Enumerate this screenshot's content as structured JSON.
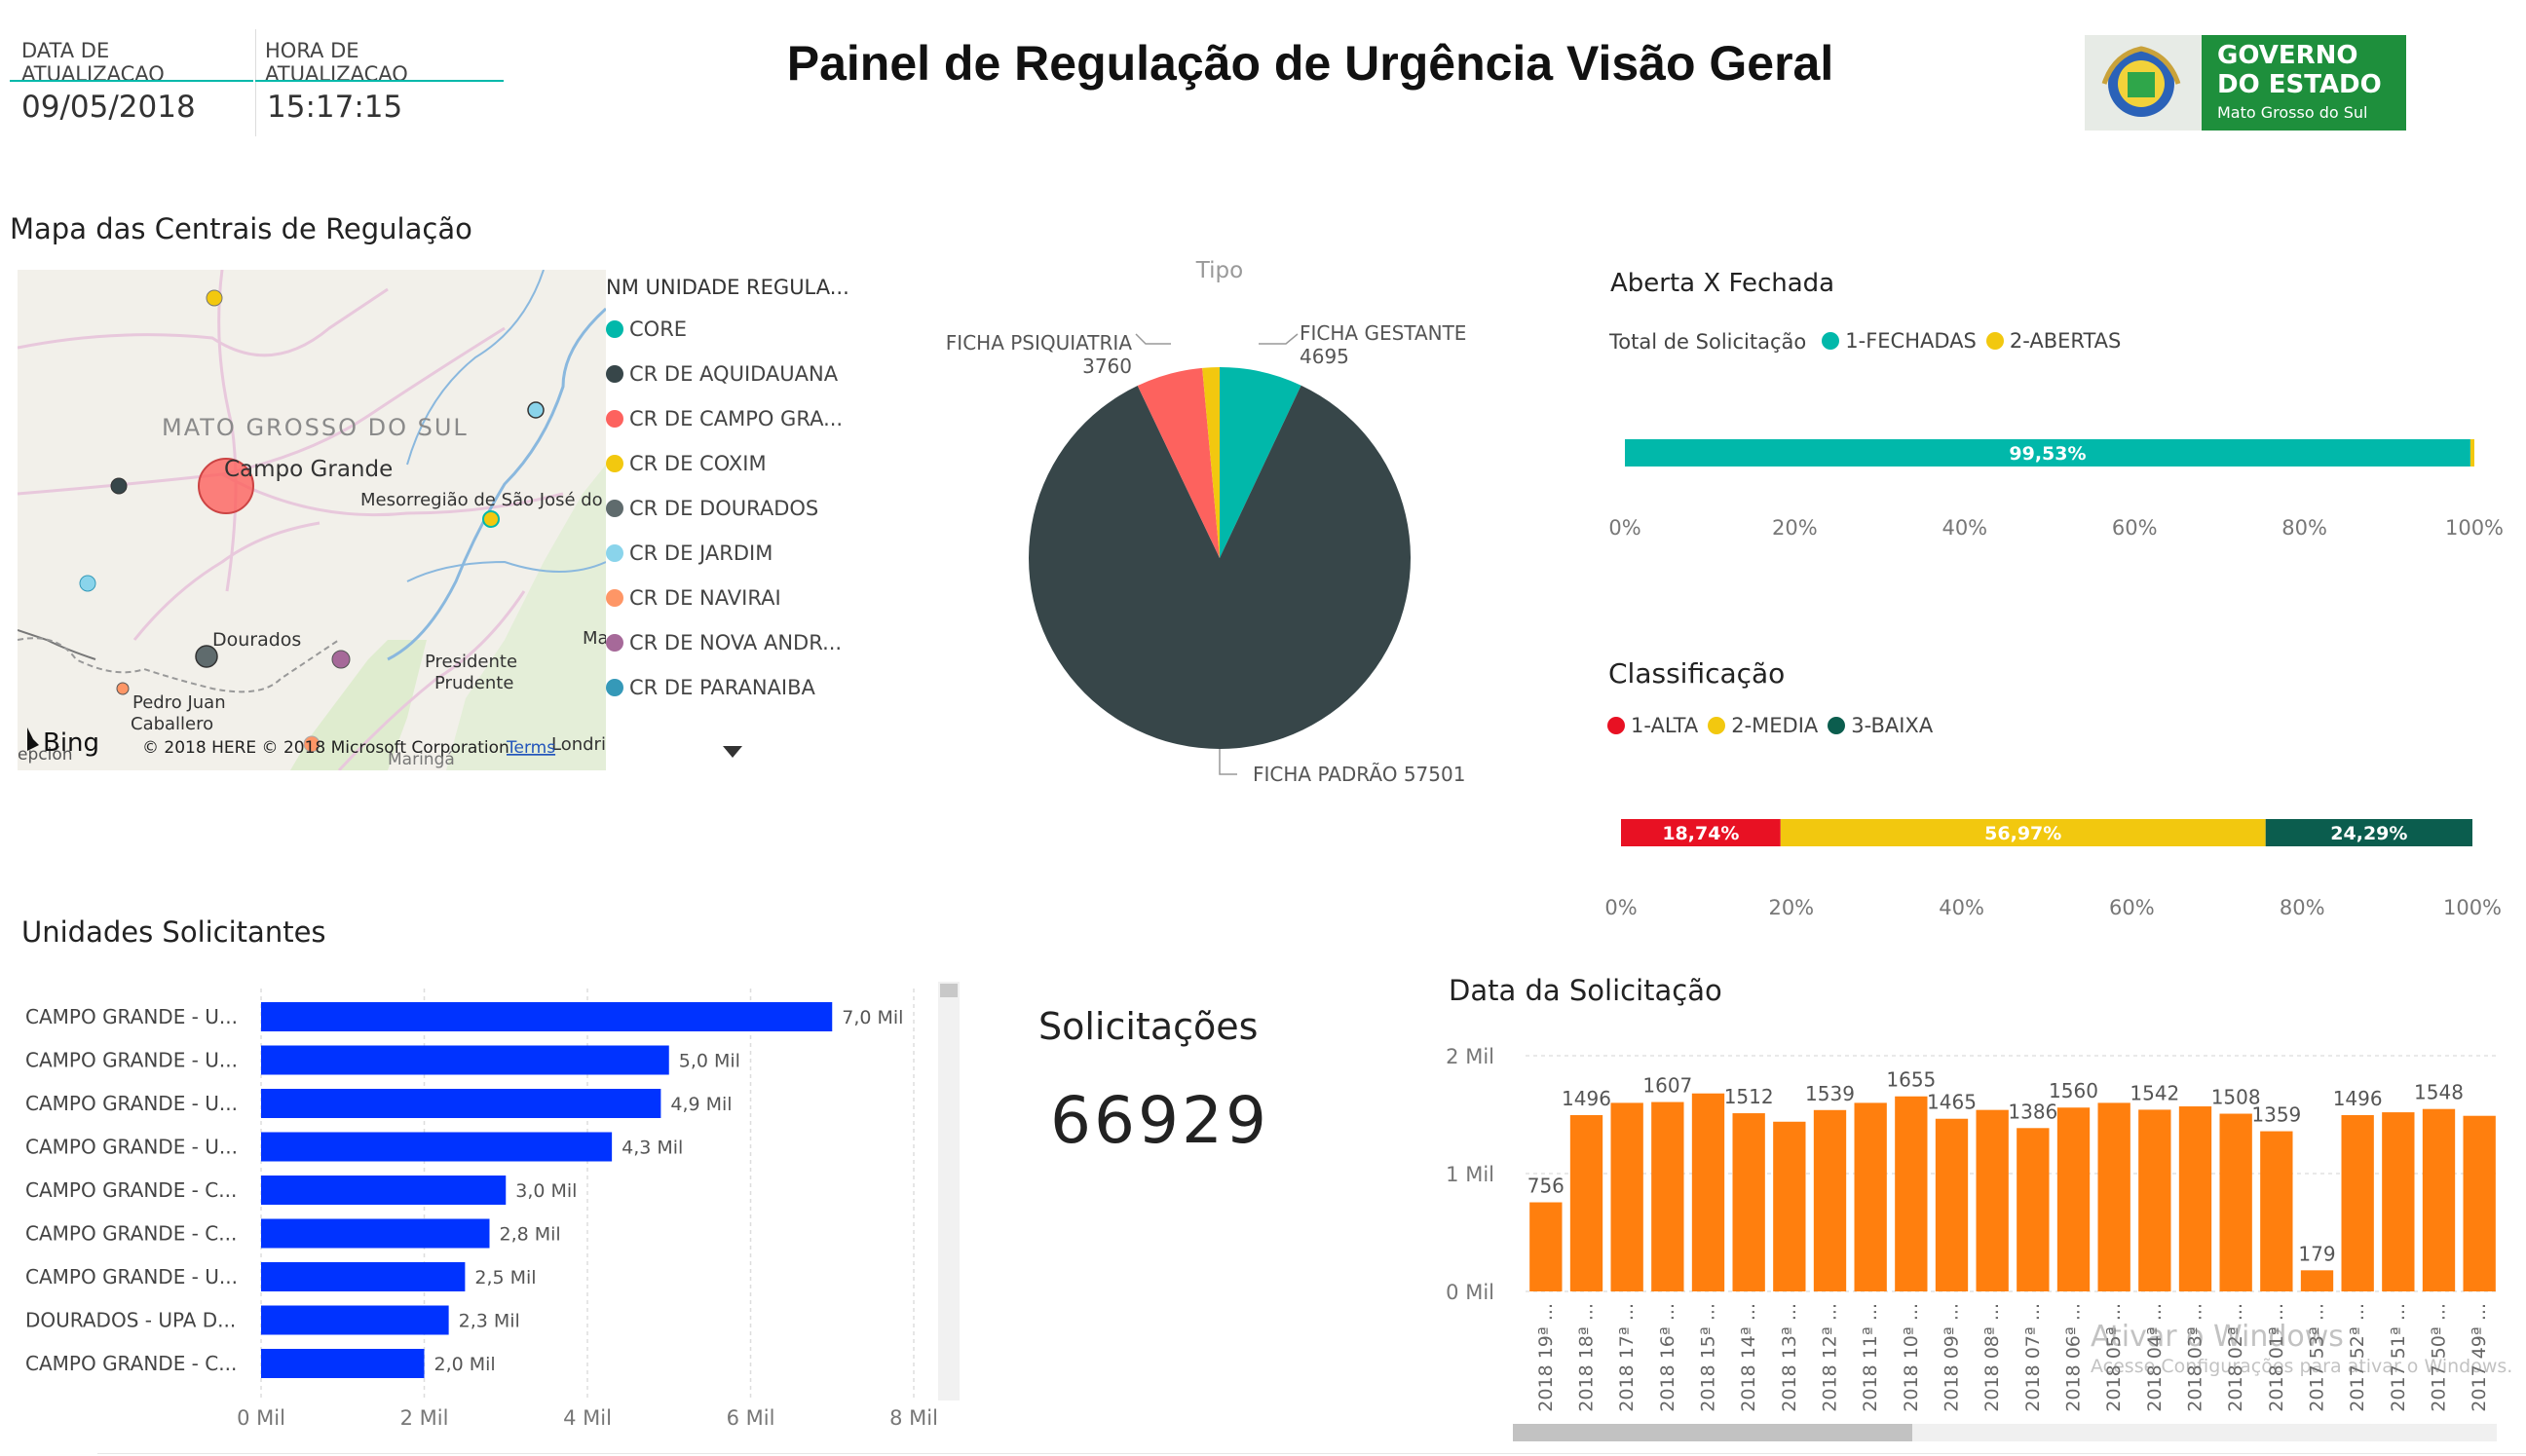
{
  "header": {
    "date_label": "DATA DE ATUALIZACAO",
    "time_label": "HORA DE ATUALIZACAO",
    "date_value": "09/05/2018",
    "time_value": "15:17:15",
    "title": "Painel de Regulação de Urgência Visão Geral",
    "logo_line1": "GOVERNO",
    "logo_line2": "DO ESTADO",
    "logo_line3": "Mato Grosso do Sul"
  },
  "map": {
    "title": "Mapa das Centrais de Regulação",
    "region_label": "MATO GROSSO DO SUL",
    "city_campo_grande": "Campo Grande",
    "city_dourados": "Dourados",
    "city_mesorregiao": "Mesorregião de São José do",
    "city_presidente": "Presidente",
    "city_prudente": "Prudente",
    "city_pedro": "Pedro Juan",
    "city_caballero": "Caballero",
    "city_maringa": "Maringá",
    "city_londrina": "Londrina",
    "city_ma": "Ma",
    "city_epcion": "epción",
    "bing": "Bing",
    "copyright": "© 2018 HERE © 2018 Microsoft Corporation",
    "terms": "Terms",
    "legend_title": "NM UNIDADE REGULA...",
    "legend": [
      {
        "label": "CORE",
        "color": "#01B8AA"
      },
      {
        "label": "CR DE AQUIDAUANA",
        "color": "#374649"
      },
      {
        "label": "CR DE CAMPO GRA...",
        "color": "#FD625E"
      },
      {
        "label": "CR DE COXIM",
        "color": "#F2C80F"
      },
      {
        "label": "CR DE DOURADOS",
        "color": "#5F6B6D"
      },
      {
        "label": "CR DE JARDIM",
        "color": "#8AD4EB"
      },
      {
        "label": "CR DE NAVIRAI",
        "color": "#FE9666"
      },
      {
        "label": "CR DE NOVA ANDR...",
        "color": "#A66999"
      },
      {
        "label": "CR DE PARANAIBA",
        "color": "#3599B8"
      }
    ]
  },
  "chart_data": [
    {
      "type": "pie",
      "title": "Tipo",
      "slices": [
        {
          "label": "FICHA GESTANTE",
          "value": 4695,
          "color": "#01B8AA"
        },
        {
          "label": "FICHA PADRÃO",
          "value": 57501,
          "color": "#374649"
        },
        {
          "label": "FICHA PSIQUIATRIA",
          "value": 3760,
          "color": "#FD625E"
        },
        {
          "label": "",
          "value": 973,
          "color": "#F2C80F"
        }
      ],
      "display_labels": [
        "FICHA GESTANTE",
        "4695",
        "FICHA PADRÃO 57501",
        "FICHA PSIQUIATRIA",
        "3760"
      ]
    },
    {
      "type": "bar",
      "orientation": "horizontal-stacked-100",
      "title": "Aberta X Fechada",
      "legend_title": "Total de Solicitação",
      "series": [
        {
          "name": "1-FECHADAS",
          "value": 99.53,
          "label": "99,53%",
          "color": "#01B8AA"
        },
        {
          "name": "2-ABERTAS",
          "value": 0.47,
          "label": "",
          "color": "#F2C80F"
        }
      ],
      "xticks": [
        "0%",
        "20%",
        "40%",
        "60%",
        "80%",
        "100%"
      ]
    },
    {
      "type": "bar",
      "orientation": "horizontal-stacked-100",
      "title": "Classificação",
      "series": [
        {
          "name": "1-ALTA",
          "value": 18.74,
          "label": "18,74%",
          "color": "#E81123"
        },
        {
          "name": "2-MEDIA",
          "value": 56.97,
          "label": "56,97%",
          "color": "#F2C80F"
        },
        {
          "name": "3-BAIXA",
          "value": 24.29,
          "label": "24,29%",
          "color": "#0B5D4E"
        }
      ],
      "xticks": [
        "0%",
        "20%",
        "40%",
        "60%",
        "80%",
        "100%"
      ]
    },
    {
      "type": "bar",
      "orientation": "horizontal",
      "title": "Unidades Solicitantes",
      "color": "#0033FF",
      "categories": [
        "CAMPO GRANDE - U...",
        "CAMPO GRANDE - U...",
        "CAMPO GRANDE - U...",
        "CAMPO GRANDE - U...",
        "CAMPO GRANDE - C...",
        "CAMPO GRANDE - C...",
        "CAMPO GRANDE - U...",
        "DOURADOS - UPA D...",
        "CAMPO GRANDE - C..."
      ],
      "values": [
        7000,
        5000,
        4900,
        4300,
        3000,
        2800,
        2500,
        2300,
        2000
      ],
      "value_labels": [
        "7,0 Mil",
        "5,0 Mil",
        "4,9 Mil",
        "4,3 Mil",
        "3,0 Mil",
        "2,8 Mil",
        "2,5 Mil",
        "2,3 Mil",
        "2,0 Mil"
      ],
      "xticks": [
        "0 Mil",
        "2 Mil",
        "4 Mil",
        "6 Mil",
        "8 Mil"
      ],
      "xlim": [
        0,
        8000
      ]
    },
    {
      "type": "bar",
      "title": "Data da Solicitação",
      "color": "#FF7F0E",
      "categories": [
        "2018 19ª ...",
        "2018 18ª ...",
        "2018 17ª ...",
        "2018 16ª ...",
        "2018 15ª ...",
        "2018 14ª ...",
        "2018 13ª ...",
        "2018 12ª ...",
        "2018 11ª ...",
        "2018 10ª ...",
        "2018 09ª ...",
        "2018 08ª ...",
        "2018 07ª ...",
        "2018 06ª ...",
        "2018 05ª ...",
        "2018 04ª ...",
        "2018 03ª ...",
        "2018 02ª ...",
        "2018 01ª ...",
        "2017 53ª ...",
        "2017 52ª ...",
        "2017 51ª ...",
        "2017 50ª ...",
        "2017 49ª ..."
      ],
      "values": [
        756,
        1496,
        1600,
        1607,
        1680,
        1512,
        1440,
        1539,
        1600,
        1655,
        1465,
        1540,
        1386,
        1560,
        1600,
        1542,
        1570,
        1508,
        1359,
        179,
        1496,
        1520,
        1548,
        1490
      ],
      "value_labels": [
        "756",
        "1496",
        "",
        "1607",
        "",
        "1512",
        "",
        "1539",
        "",
        "1655",
        "1465",
        "",
        "1386",
        "1560",
        "",
        "1542",
        "",
        "1508",
        "1359",
        "179",
        "1496",
        "",
        "1548",
        ""
      ],
      "yticks": [
        "0 Mil",
        "1 Mil",
        "2 Mil"
      ],
      "ylim": [
        0,
        2000
      ]
    }
  ],
  "kpi": {
    "title": "Solicitações",
    "value": "66929"
  },
  "watermark": {
    "line1": "Ativar o Windows",
    "line2": "Acesse Configurações para ativar o Windows."
  }
}
